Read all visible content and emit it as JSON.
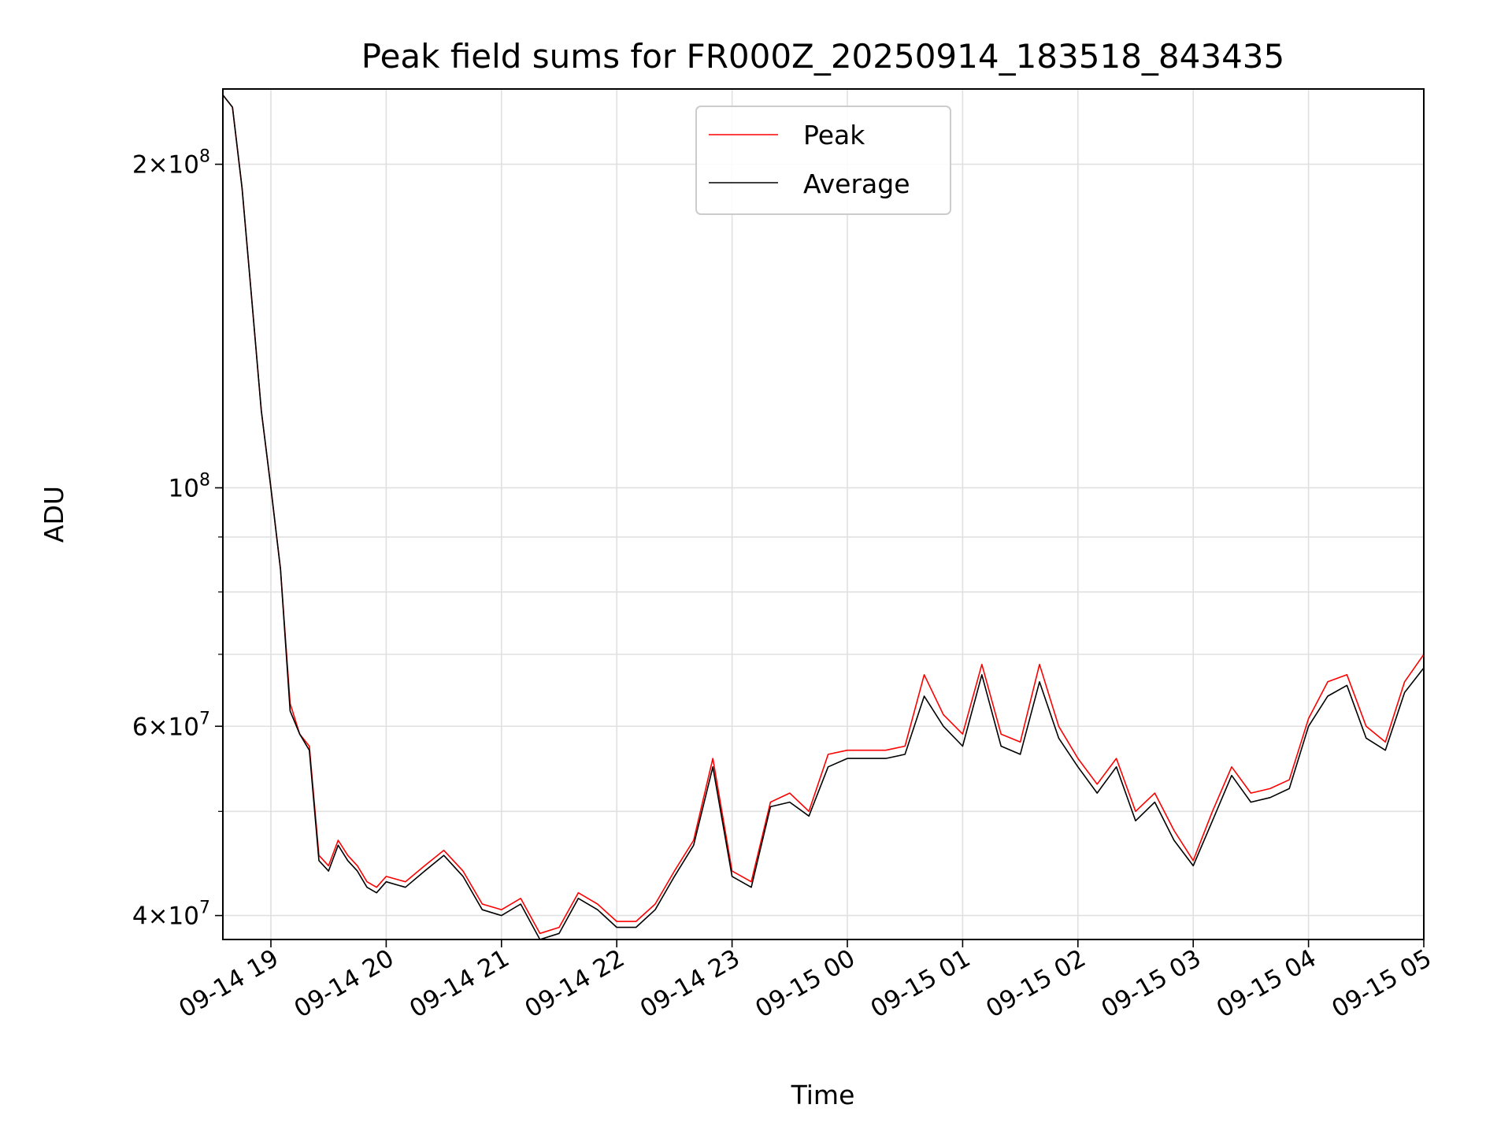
{
  "chart_data": {
    "type": "line",
    "title": "Peak field sums for FR000Z_20250914_183518_843435",
    "xlabel": "Time",
    "ylabel": "ADU",
    "y_scale": "log",
    "ylim": [
      38000000,
      235000000
    ],
    "xlim": [
      "09-14 18:35",
      "09-15 05:00"
    ],
    "grid": true,
    "legend_position": "top-center",
    "x_ticks": [
      "09-14 19",
      "09-14 20",
      "09-14 21",
      "09-14 22",
      "09-14 23",
      "09-15 00",
      "09-15 01",
      "09-15 02",
      "09-15 03",
      "09-15 04",
      "09-15 05"
    ],
    "y_ticks": [
      {
        "value": 40000000,
        "label_base": "4×10",
        "exp": "7"
      },
      {
        "value": 60000000,
        "label_base": "6×10",
        "exp": "7"
      },
      {
        "value": 100000000,
        "label_base": "10",
        "exp": "8"
      },
      {
        "value": 200000000,
        "label_base": "2×10",
        "exp": "8"
      }
    ],
    "series": [
      {
        "name": "Peak",
        "color": "#ff0000"
      },
      {
        "name": "Average",
        "color": "#000000"
      }
    ],
    "x": [
      "09-14 18:35",
      "09-14 18:40",
      "09-14 18:45",
      "09-14 18:50",
      "09-14 18:55",
      "09-14 19:00",
      "09-14 19:05",
      "09-14 19:10",
      "09-14 19:15",
      "09-14 19:20",
      "09-14 19:25",
      "09-14 19:30",
      "09-14 19:35",
      "09-14 19:40",
      "09-14 19:45",
      "09-14 19:50",
      "09-14 19:55",
      "09-14 20:00",
      "09-14 20:10",
      "09-14 20:20",
      "09-14 20:30",
      "09-14 20:40",
      "09-14 20:50",
      "09-14 21:00",
      "09-14 21:10",
      "09-14 21:20",
      "09-14 21:30",
      "09-14 21:40",
      "09-14 21:50",
      "09-14 22:00",
      "09-14 22:10",
      "09-14 22:20",
      "09-14 22:30",
      "09-14 22:40",
      "09-14 22:50",
      "09-14 23:00",
      "09-14 23:10",
      "09-14 23:20",
      "09-14 23:30",
      "09-14 23:40",
      "09-14 23:50",
      "09-15 00:00",
      "09-15 00:10",
      "09-15 00:20",
      "09-15 00:30",
      "09-15 00:40",
      "09-15 00:50",
      "09-15 01:00",
      "09-15 01:10",
      "09-15 01:20",
      "09-15 01:30",
      "09-15 01:40",
      "09-15 01:50",
      "09-15 02:00",
      "09-15 02:10",
      "09-15 02:20",
      "09-15 02:30",
      "09-15 02:40",
      "09-15 02:50",
      "09-15 03:00",
      "09-15 03:10",
      "09-15 03:20",
      "09-15 03:30",
      "09-15 03:40",
      "09-15 03:50",
      "09-15 04:00",
      "09-15 04:10",
      "09-15 04:20",
      "09-15 04:30",
      "09-15 04:40",
      "09-15 04:50",
      "09-15 05:00"
    ],
    "peak_values": [
      232000000,
      226000000,
      190000000,
      150000000,
      118000000,
      100000000,
      84000000,
      63000000,
      59000000,
      57500000,
      45500000,
      44500000,
      47000000,
      45500000,
      44500000,
      43000000,
      42500000,
      43500000,
      43000000,
      44500000,
      46000000,
      44000000,
      41000000,
      40500000,
      41500000,
      38500000,
      39000000,
      42000000,
      41000000,
      39500000,
      39500000,
      41000000,
      44000000,
      47000000,
      56000000,
      44000000,
      43000000,
      51000000,
      52000000,
      50000000,
      56500000,
      57000000,
      57000000,
      57000000,
      57500000,
      67000000,
      61500000,
      59000000,
      68500000,
      59000000,
      58000000,
      68500000,
      60000000,
      56000000,
      53000000,
      56000000,
      50000000,
      52000000,
      48000000,
      45000000,
      50000000,
      55000000,
      52000000,
      52500000,
      53500000,
      61000000,
      66000000,
      67000000,
      60000000,
      58000000,
      66000000,
      70000000
    ],
    "average_values": [
      232000000,
      226000000,
      190000000,
      150000000,
      118000000,
      100000000,
      84000000,
      62000000,
      59000000,
      57000000,
      45000000,
      44000000,
      46500000,
      45000000,
      44000000,
      42500000,
      42000000,
      43000000,
      42500000,
      44000000,
      45500000,
      43500000,
      40500000,
      40000000,
      41000000,
      38000000,
      38500000,
      41500000,
      40500000,
      39000000,
      39000000,
      40500000,
      43500000,
      46500000,
      55000000,
      43500000,
      42500000,
      50500000,
      51000000,
      49500000,
      55000000,
      56000000,
      56000000,
      56000000,
      56500000,
      64000000,
      60000000,
      57500000,
      67000000,
      57500000,
      56500000,
      66000000,
      58500000,
      55000000,
      52000000,
      55000000,
      49000000,
      51000000,
      47000000,
      44500000,
      49000000,
      54000000,
      51000000,
      51500000,
      52500000,
      60000000,
      64000000,
      65500000,
      58500000,
      57000000,
      64500000,
      68000000
    ]
  }
}
